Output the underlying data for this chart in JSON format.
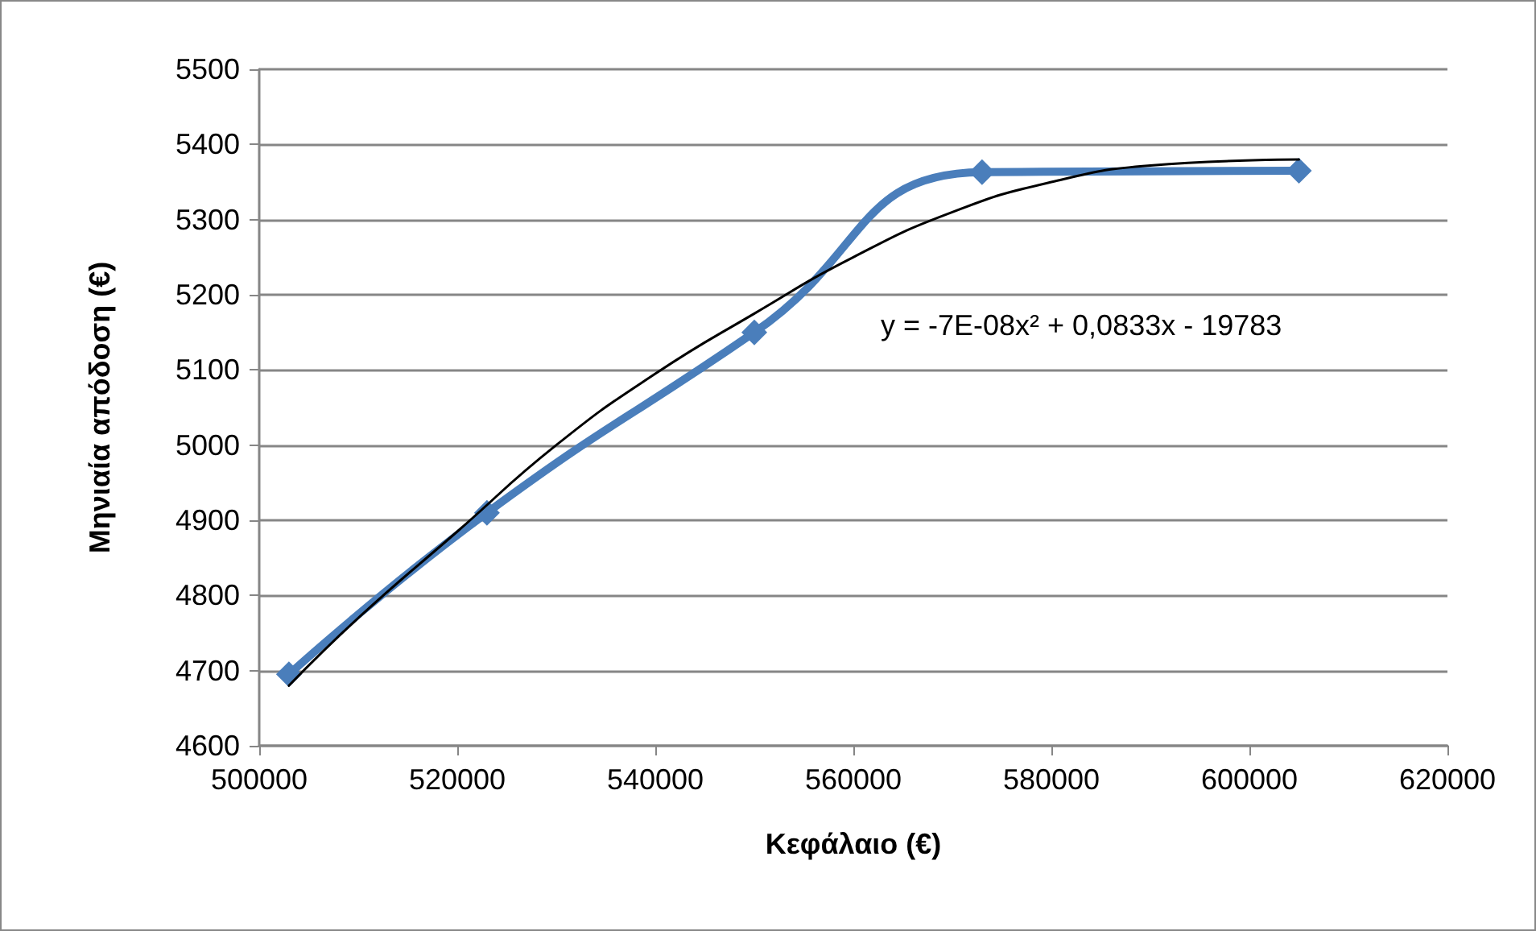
{
  "chart_data": {
    "type": "line",
    "xlabel": "Κεφάλαιο (€)",
    "ylabel": "Μηνιαία απόδοση (€)",
    "xlim": [
      500000,
      620000
    ],
    "xticks": [
      500000,
      520000,
      540000,
      560000,
      580000,
      600000,
      620000
    ],
    "ylim": [
      4600,
      5500
    ],
    "yticks": [
      4600,
      4700,
      4800,
      4900,
      5000,
      5100,
      5200,
      5300,
      5400,
      5500
    ],
    "grid": "y",
    "line_style": "solid",
    "annotations": [
      "y = -7E-08x² + 0,0833x - 19783"
    ],
    "series": [
      {
        "color": "#4a7ebb",
        "marker": "diamond",
        "x": [
          503000,
          523000,
          550000,
          573000,
          605000
        ],
        "values": [
          4695,
          4910,
          5150,
          5363,
          5365
        ]
      },
      {
        "color": "#000000",
        "marker": "none",
        "x": [
          503000,
          510000,
          520000,
          530000,
          540000,
          550000,
          560000,
          570000,
          580000,
          590000,
          605000
        ],
        "values": [
          4680,
          4770,
          4885,
          5000,
          5095,
          5175,
          5250,
          5310,
          5350,
          5372,
          5380
        ]
      }
    ]
  }
}
